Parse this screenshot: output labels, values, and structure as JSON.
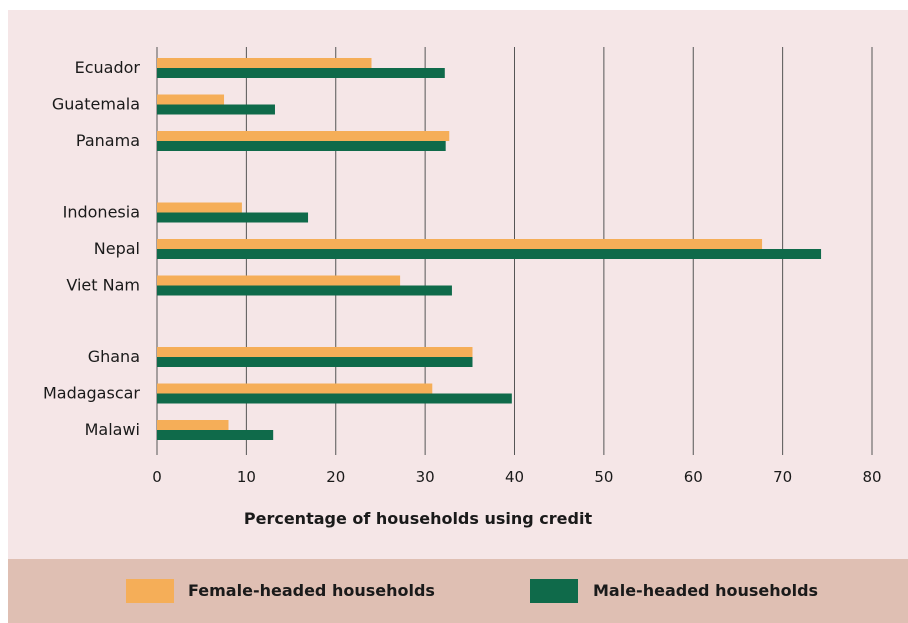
{
  "chart_data": {
    "type": "bar",
    "orientation": "horizontal",
    "xlabel": "Percentage of households using credit",
    "xlim": [
      0,
      80
    ],
    "xticks": [
      0,
      10,
      20,
      30,
      40,
      50,
      60,
      70,
      80
    ],
    "grid": true,
    "legend_position": "bottom",
    "groups": [
      [
        "Ecuador",
        "Guatemala",
        "Panama"
      ],
      [
        "Indonesia",
        "Nepal",
        "Viet Nam"
      ],
      [
        "Ghana",
        "Madagascar",
        "Malawi"
      ]
    ],
    "categories": [
      "Ecuador",
      "Guatemala",
      "Panama",
      "Indonesia",
      "Nepal",
      "Viet Nam",
      "Ghana",
      "Madagascar",
      "Malawi"
    ],
    "series": [
      {
        "name": "Female-headed households",
        "color": "#f5ae58",
        "values": [
          24,
          7.5,
          32.7,
          9.5,
          67.7,
          27.2,
          35.3,
          30.8,
          8
        ]
      },
      {
        "name": "Male-headed households",
        "color": "#0f6a4a",
        "values": [
          32.2,
          13.2,
          32.3,
          16.9,
          74.3,
          33,
          35.3,
          39.7,
          13
        ]
      }
    ]
  },
  "colors": {
    "chart_background": "#f5e6e7",
    "legend_background": "#dfbfb3",
    "gridline": "#555555"
  }
}
